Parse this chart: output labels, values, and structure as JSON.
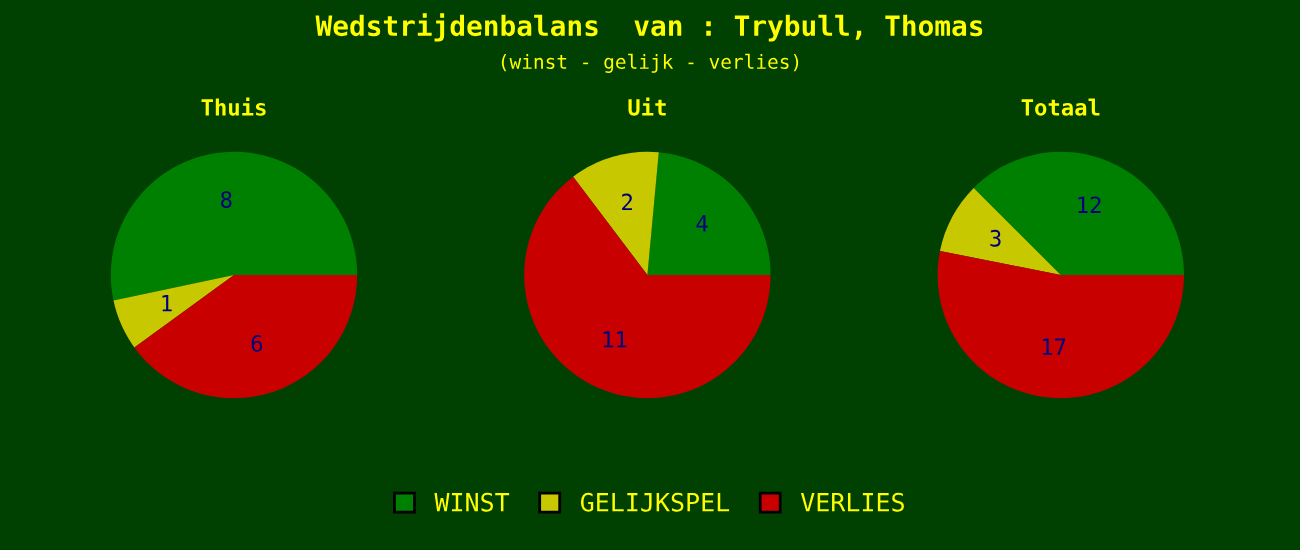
{
  "chart_data": [
    {
      "type": "other",
      "title": "Wedstrijdenbalans  van : Trybull, Thomas",
      "subtitle": "(winst - gelijk - verlies)"
    },
    {
      "type": "pie",
      "title": "Thuis",
      "categories": [
        "WINST",
        "GELIJKSPEL",
        "VERLIES"
      ],
      "values": [
        8,
        1,
        6
      ],
      "colors": [
        "#008000",
        "#c8c800",
        "#c80000"
      ],
      "data_labels": true,
      "legend": "bottom"
    },
    {
      "type": "pie",
      "title": "Uit",
      "categories": [
        null,
        null,
        null
      ],
      "values": [
        4,
        2,
        11
      ],
      "colors": [
        "#008000",
        "#c8c800",
        "#c80000"
      ],
      "data_labels": true
    },
    {
      "type": "pie",
      "title": "Totaal",
      "categories": [
        null,
        null,
        null
      ],
      "values": [
        12,
        3,
        17
      ],
      "colors": [
        "#008000",
        "#c8c800",
        "#c80000"
      ],
      "data_labels": true
    }
  ]
}
